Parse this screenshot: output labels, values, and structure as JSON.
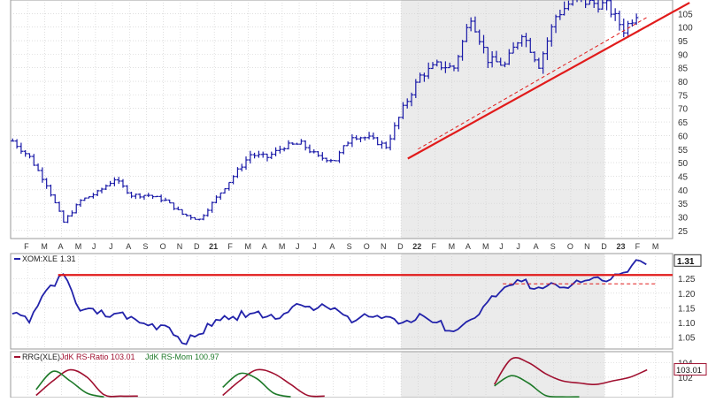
{
  "colors": {
    "price_bar": "#1a1aa8",
    "ratio_line": "#2222aa",
    "trendline": "#e11b1b",
    "rs_ratio": "#a01030",
    "rs_mom": "#1f7a2a",
    "shade": "#ebebeb",
    "grid": "#cccccc"
  },
  "chart_data": [
    {
      "type": "line",
      "title": "",
      "style": "OHLC bars",
      "axis_position": "right",
      "ylim": [
        22,
        110
      ],
      "y_ticks": [
        "25",
        "30",
        "35",
        "40",
        "45",
        "50",
        "55",
        "60",
        "65",
        "70",
        "75",
        "80",
        "85",
        "90",
        "95",
        "100",
        "105"
      ],
      "x_labels": [
        "F",
        "M",
        "A",
        "M",
        "J",
        "J",
        "A",
        "S",
        "O",
        "N",
        "D",
        "21",
        "F",
        "M",
        "A",
        "M",
        "J",
        "J",
        "A",
        "S",
        "O",
        "N",
        "D",
        "22",
        "F",
        "M",
        "A",
        "M",
        "J",
        "J",
        "A",
        "S",
        "O",
        "N",
        "D",
        "23",
        "F",
        "M"
      ],
      "x_start_index": 1,
      "months": 39,
      "series": [
        {
          "months": [
            0,
            1,
            2,
            3,
            4,
            5,
            6,
            7,
            8,
            9,
            10,
            11,
            12,
            13,
            14,
            15,
            16,
            17,
            18,
            19,
            20,
            21,
            22,
            23,
            24,
            25,
            26,
            27,
            28,
            29,
            30,
            31,
            32,
            33,
            34,
            35,
            36,
            37
          ],
          "values": [
            58,
            52,
            42,
            28,
            36,
            39,
            44,
            38,
            38,
            36,
            31,
            29,
            37,
            45,
            53,
            52,
            56,
            57,
            52,
            51,
            60,
            59,
            56,
            70,
            82,
            86,
            85,
            104,
            88,
            86,
            98,
            86,
            104,
            110,
            109,
            108,
            99,
            107
          ]
        }
      ],
      "trendlines": [
        {
          "style": "solid",
          "points": [
            [
              23.4,
              51.5
            ],
            [
              40.0,
              109.0
            ]
          ]
        },
        {
          "style": "dashed",
          "points": [
            [
              24.0,
              55.0
            ],
            [
              37.6,
              104.0
            ]
          ]
        }
      ]
    },
    {
      "type": "line",
      "label_name": "XOM:XLE",
      "label_value": "1.31",
      "current_value": "1.31",
      "ylim": [
        1.01,
        1.335
      ],
      "y_ticks": [
        "1.05",
        "1.10",
        "1.15",
        "1.20",
        "1.25"
      ],
      "series": [
        {
          "months": [
            0,
            1,
            2,
            3,
            4,
            5,
            6,
            7,
            8,
            9,
            10,
            11,
            12,
            13,
            14,
            15,
            16,
            17,
            18,
            19,
            20,
            21,
            22,
            23,
            24,
            25,
            26,
            27,
            28,
            29,
            30,
            31,
            32,
            33,
            34,
            35,
            36,
            37
          ],
          "values": [
            1.13,
            1.1,
            1.21,
            1.265,
            1.14,
            1.13,
            1.13,
            1.12,
            1.09,
            1.09,
            1.03,
            1.06,
            1.11,
            1.12,
            1.13,
            1.12,
            1.13,
            1.16,
            1.15,
            1.15,
            1.1,
            1.12,
            1.12,
            1.1,
            1.13,
            1.1,
            1.07,
            1.11,
            1.17,
            1.22,
            1.24,
            1.22,
            1.23,
            1.23,
            1.245,
            1.24,
            1.27,
            1.31
          ]
        }
      ],
      "horizontal_lines": [
        {
          "style": "solid",
          "value": 1.262,
          "from_month": 2.8,
          "to_month": 40.0
        },
        {
          "style": "dashed",
          "value": 1.232,
          "from_month": 29.0,
          "to_month": 38.0
        }
      ]
    },
    {
      "type": "line",
      "label_name": "RRG(XLE)",
      "label_ratio": "JdK RS-Ratio 103.01",
      "label_mom": "JdK RS-Mom 100.97",
      "current_value": "103.01",
      "ylim": [
        99.2,
        105.5
      ],
      "y_ticks": [
        "102",
        "104"
      ],
      "series": [
        {
          "name": "JdK RS-Ratio",
          "months": [
            1.5,
            2.5,
            3.5,
            4.5,
            5.5,
            6.5,
            7.5,
            12.5,
            13.5,
            14.5,
            15.5,
            16.5,
            17.5,
            18.5,
            28.5,
            29.5,
            30.5,
            31.5,
            32.5,
            33.5,
            34.5,
            35.5,
            36.5,
            37.5
          ],
          "values": [
            99.5,
            101.5,
            103.0,
            102.0,
            99.6,
            99.4,
            99.4,
            99.5,
            101.5,
            103.0,
            102.5,
            101.0,
            99.5,
            99.4,
            101.0,
            104.5,
            104.0,
            102.5,
            101.5,
            101.2,
            101.0,
            101.5,
            102.0,
            103.01
          ]
        },
        {
          "name": "JdK RS-Mom",
          "months": [
            1.5,
            2.5,
            3.5,
            4.5,
            5.5,
            12.5,
            13.5,
            14.5,
            15.5,
            16.5,
            28.5,
            29.5,
            30.5,
            31.5,
            32.5,
            33.5
          ],
          "values": [
            100.3,
            102.8,
            101.5,
            99.8,
            99.3,
            100.6,
            102.5,
            101.8,
            99.8,
            99.3,
            100.8,
            102.2,
            101.2,
            99.5,
            99.3,
            99.3
          ]
        }
      ]
    }
  ]
}
